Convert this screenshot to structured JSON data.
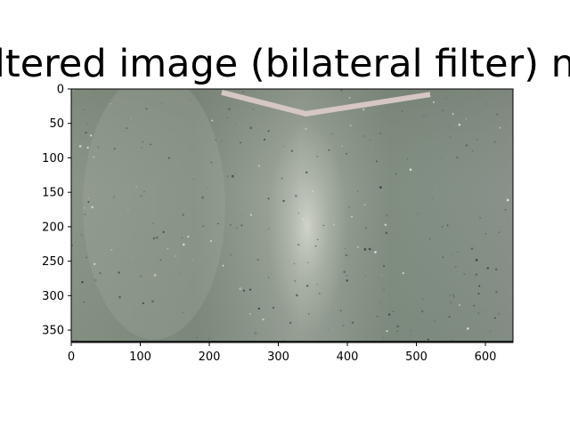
{
  "chart_data": {
    "type": "image",
    "title": "filtered image (bilateral filter) nn",
    "xlabel": "",
    "ylabel": "",
    "xlim": [
      0,
      640
    ],
    "ylim": [
      368,
      0
    ],
    "xticks": [
      0,
      100,
      200,
      300,
      400,
      500,
      600
    ],
    "yticks": [
      0,
      50,
      100,
      150,
      200,
      250,
      300,
      350
    ],
    "grid": false,
    "image_content": {
      "floor_color": "#7c8a7c",
      "floor_highlight": "#b8bdb4",
      "tape_color": "#d6c7c4",
      "tape_line": [
        [
          218,
          5
        ],
        [
          340,
          36
        ],
        [
          520,
          8
        ]
      ]
    }
  }
}
